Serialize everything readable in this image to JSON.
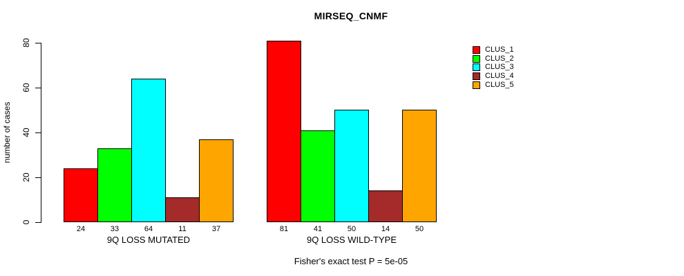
{
  "chart_data": {
    "type": "bar",
    "title": "MIRSEQ_CNMF",
    "ylabel": "number of cases",
    "xlabel": "",
    "ylim": [
      0,
      80
    ],
    "yticks": [
      0,
      20,
      40,
      60,
      80
    ],
    "grid": false,
    "legend_position": "right",
    "value_labels_shown": true,
    "categories": [
      "9Q LOSS MUTATED",
      "9Q LOSS WILD-TYPE"
    ],
    "series": [
      {
        "name": "CLUS_1",
        "color": "#ff0000",
        "values": [
          24,
          81
        ]
      },
      {
        "name": "CLUS_2",
        "color": "#00ff00",
        "values": [
          33,
          41
        ]
      },
      {
        "name": "CLUS_3",
        "color": "#00ffff",
        "values": [
          64,
          50
        ]
      },
      {
        "name": "CLUS_4",
        "color": "#a52a2a",
        "values": [
          11,
          14
        ]
      },
      {
        "name": "CLUS_5",
        "color": "#ffa500",
        "values": [
          37,
          50
        ]
      }
    ],
    "footer": "Fisher's exact test P = 5e-05",
    "colors": {
      "background": "#ffffff",
      "axis": "#000000",
      "text": "#000000"
    }
  }
}
